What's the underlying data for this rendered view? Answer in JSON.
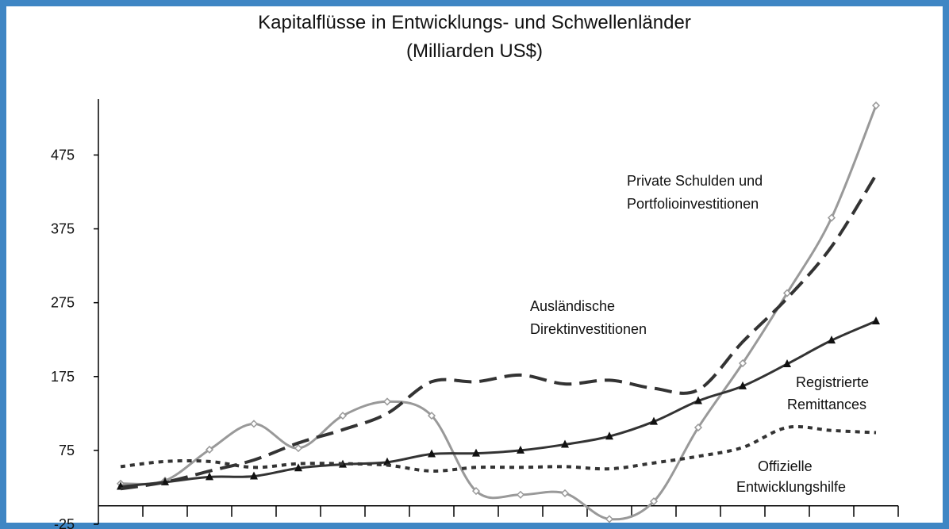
{
  "chart_data": {
    "type": "line",
    "title": "Kapitalflüsse in Entwicklungs- und Schwellenländer",
    "subtitle": "(Milliarden US$)",
    "categories": [
      null,
      null,
      null,
      null,
      null,
      null,
      null,
      null,
      null,
      null,
      null,
      null,
      null,
      null,
      null,
      null,
      null,
      null
    ],
    "series": [
      {
        "color": "#999999",
        "dash": "solid",
        "marker": "diamond",
        "values": [
          30,
          34,
          76,
          111,
          78,
          122,
          141,
          122,
          20,
          15,
          17,
          -18,
          6,
          106,
          193,
          288,
          390,
          542
        ]
      },
      {
        "color": "#333333",
        "dash": "solid",
        "marker": "triangle",
        "values": [
          26,
          32,
          39,
          40,
          51,
          56,
          59,
          70,
          71,
          75,
          83,
          94,
          114,
          142,
          162,
          192,
          224,
          250
        ]
      },
      {
        "color": "#333333",
        "dash": "long",
        "marker": "none",
        "values": [
          23,
          32,
          47,
          62,
          85,
          103,
          125,
          168,
          168,
          177,
          165,
          170,
          159,
          157,
          222,
          281,
          351,
          448
        ]
      },
      {
        "color": "#333333",
        "dash": "dotted",
        "marker": "none",
        "values": [
          53,
          60,
          60,
          52,
          57,
          57,
          55,
          47,
          52,
          52,
          53,
          50,
          58,
          67,
          79,
          106,
          102,
          99
        ]
      }
    ],
    "annotations": [
      {
        "lines": [
          "Private Schulden und",
          "Portfolioinvestitionen"
        ]
      },
      {
        "lines": [
          "Ausländische",
          "Direktinvestitionen"
        ]
      },
      {
        "lines": [
          "Registrierte",
          "Remittances"
        ]
      },
      {
        "lines": [
          "Offizielle",
          "Entwicklungshilfe"
        ]
      }
    ],
    "ylim": [
      -25,
      550
    ],
    "yticks": [
      -25,
      75,
      175,
      275,
      375,
      475
    ],
    "grid": false
  }
}
